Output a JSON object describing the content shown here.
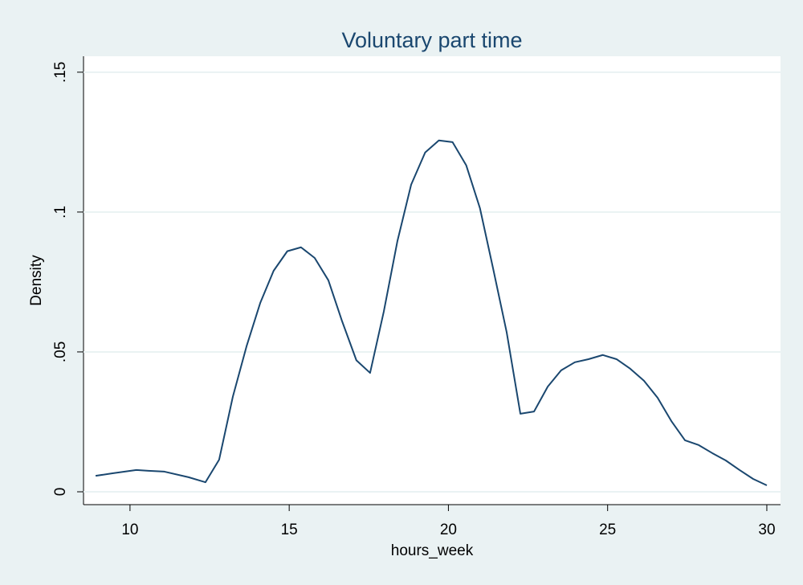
{
  "chart_data": {
    "type": "line",
    "title": "Voluntary part time",
    "x_label": "hours_week",
    "y_label": "Density",
    "x": [
      8.92,
      9.45,
      10.2,
      10.58,
      11.08,
      11.84,
      12.37,
      12.8,
      13.23,
      13.66,
      14.09,
      14.51,
      14.94,
      15.37,
      15.8,
      16.23,
      16.66,
      17.11,
      17.54,
      17.97,
      18.4,
      18.83,
      19.27,
      19.7,
      20.13,
      20.56,
      20.99,
      21.4,
      21.83,
      22.26,
      22.69,
      23.12,
      23.54,
      23.97,
      24.4,
      24.85,
      25.28,
      25.71,
      26.14,
      26.57,
      27.0,
      27.43,
      27.86,
      28.29,
      28.71,
      29.14,
      29.57,
      30.0
    ],
    "values": [
      0.0057,
      0.0066,
      0.0078,
      0.0075,
      0.0072,
      0.0052,
      0.0034,
      0.0115,
      0.034,
      0.052,
      0.0675,
      0.079,
      0.086,
      0.0874,
      0.0836,
      0.0756,
      0.061,
      0.047,
      0.0425,
      0.0644,
      0.0897,
      0.1098,
      0.1213,
      0.1256,
      0.125,
      0.1167,
      0.1014,
      0.08,
      0.057,
      0.0279,
      0.0287,
      0.0376,
      0.0434,
      0.0463,
      0.0474,
      0.0489,
      0.0474,
      0.044,
      0.0397,
      0.0336,
      0.0253,
      0.0184,
      0.0167,
      0.0138,
      0.0112,
      0.0078,
      0.0046,
      0.0023
    ],
    "color": "#1a476f",
    "xlim": [
      8.54,
      30.43
    ],
    "xticks": [
      10,
      15,
      20,
      25,
      30
    ],
    "ylim": [
      -0.0046,
      0.1557
    ],
    "yticks": [
      0,
      {
        "value": 0.05,
        "label": ".05"
      },
      {
        "value": 0.1,
        "label": ".1"
      },
      {
        "value": 0.15,
        "label": ".15"
      }
    ],
    "grid": true
  }
}
